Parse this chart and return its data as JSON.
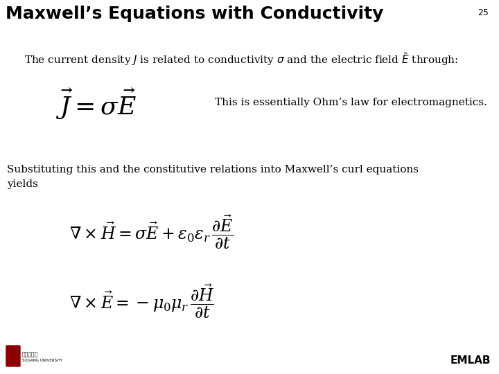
{
  "title": "Maxwell’s Equations with Conductivity",
  "slide_number": "25",
  "background_color": "#ffffff",
  "title_color": "#000000",
  "title_fontsize": 18,
  "body_text1": "The current density $J$ is related to conductivity $\\sigma$ and the electric field $\\bar{E}$ through:",
  "body_fontsize": 11,
  "eq1_fontsize": 26,
  "annotation1": "This is essentially Ohm’s law for electromagnetics.",
  "annotation_fontsize": 11,
  "body_text2": "Substituting this and the constitutive relations into Maxwell’s curl equations\nyields",
  "eq2_fontsize": 17,
  "eq3_fontsize": 17,
  "footer_text": "EMLAB",
  "footer_fontsize": 11,
  "slide_num_fontsize": 9
}
